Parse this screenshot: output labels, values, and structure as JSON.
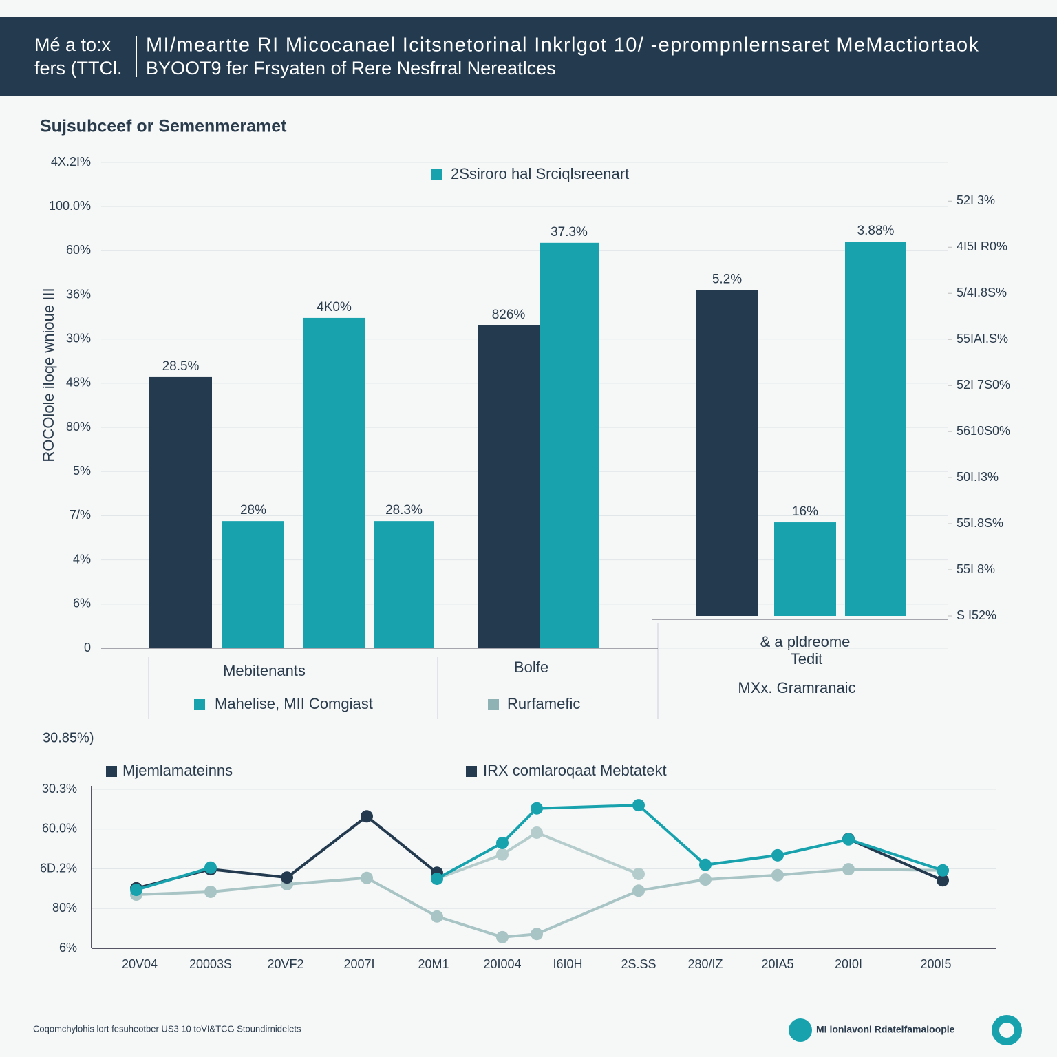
{
  "header": {
    "left": [
      "Mé a to:x",
      "fers (TTCl."
    ],
    "right": [
      "MI/meartte RI Micocanael Icitsnetorinal Inkrlgot 10/ -eprompnlernsaret MeMactiortaok",
      "BYOOT9 fer Frsyaten of Rere Nesfrral Nereatlces"
    ]
  },
  "section_title": "Sujsubceef or Semenmeramet",
  "chart_data": [
    {
      "type": "bar",
      "y_label": "ROCOlole iloqe wnioue III",
      "ylim": [
        0,
        11
      ],
      "yticks": [
        0,
        {
          "value": 1,
          "label": "6%"
        },
        {
          "value": 2,
          "label": "4%"
        },
        {
          "value": 3,
          "label": "7/%"
        },
        {
          "value": 4,
          "label": "5%"
        },
        {
          "value": 5,
          "label": "80%"
        },
        {
          "value": 6,
          "label": "48%"
        },
        {
          "value": 7,
          "label": "30%"
        },
        {
          "value": 8,
          "label": "36%"
        },
        {
          "value": 9,
          "label": "60%"
        },
        {
          "value": 10,
          "label": "100.0%"
        },
        {
          "value": 11,
          "label": "4X.2I%"
        }
      ],
      "y2lim": [
        0,
        9.9
      ],
      "y2ticks": [
        {
          "value": 0,
          "label": "S I52%"
        },
        {
          "value": 1,
          "label": "55I 8%"
        },
        {
          "value": 2,
          "label": "55I.8S%"
        },
        {
          "value": 3,
          "label": "50I.I3%"
        },
        {
          "value": 4,
          "label": "5610S0%"
        },
        {
          "value": 5,
          "label": "52I 7S0%"
        },
        {
          "value": 6,
          "label": "55IAI.S%"
        },
        {
          "value": 7,
          "label": "5/4I.8S%"
        },
        {
          "value": 8,
          "label": "4I5I R0%"
        },
        {
          "value": 9,
          "label": "52I 3%"
        }
      ],
      "grid": true,
      "series": [
        {
          "color": "#233a4f",
          "values": [
            6.14,
            null,
            null,
            null,
            7.31,
            null,
            null,
            null,
            null
          ],
          "value_labels": [
            "28.5%",
            null,
            null,
            null,
            "826%",
            null,
            null,
            null,
            null
          ]
        },
        {
          "name": "2Ssiroro hal Srciqlsreenart",
          "color": "#17a2ae",
          "values": [
            null,
            2.88,
            7.48,
            2.88,
            null,
            9.18,
            null,
            null,
            null
          ],
          "value_labels": [
            null,
            "28%",
            "4K0%",
            "28.3%",
            null,
            "37.3%",
            null,
            null,
            null
          ]
        },
        {
          "color": "#233a4f",
          "axis": "y2",
          "values": [
            null,
            null,
            null,
            null,
            null,
            null,
            7.07,
            null,
            null
          ],
          "value_labels": [
            null,
            null,
            null,
            null,
            null,
            null,
            "5.2%",
            null,
            null
          ]
        },
        {
          "color": "#17a2ae",
          "axis": "y2",
          "values": [
            null,
            null,
            null,
            null,
            null,
            null,
            null,
            2.03,
            8.12
          ],
          "value_labels": [
            null,
            null,
            null,
            null,
            null,
            null,
            null,
            "16%",
            "3.88%"
          ]
        }
      ],
      "group_labels": [
        "Mebitenants",
        "Bolfe",
        "& a pldreome",
        "Tedit",
        "MXx. Gramranaic"
      ],
      "legend_items": [
        {
          "label": "Mahelise, MII Comgiast",
          "color": "#17a2ae"
        },
        {
          "label": "Rurfamefic",
          "color": "#8fb3b5"
        }
      ]
    },
    {
      "type": "line",
      "subtitle": "30.85%)",
      "categories": [
        "20V04",
        "20003S",
        "20VF2",
        "2007I",
        "20M1",
        "20I004",
        "I6I0H",
        "2S.SS",
        "280/IZ",
        "20IA5",
        "20I0I",
        "200I5"
      ],
      "ylim": [
        0,
        4
      ],
      "yticks": [
        {
          "value": 0,
          "label": "6%"
        },
        {
          "value": 1,
          "label": "80%"
        },
        {
          "value": 2,
          "label": "6D.2%"
        },
        {
          "value": 3,
          "label": "60.0%"
        },
        {
          "value": 4,
          "label": "30.3%"
        }
      ],
      "grid": true,
      "legend": [
        {
          "label": "Mjemlamateinns",
          "color": "#233a4f"
        },
        {
          "label": "IRX comlaroqaat Mebtatekt",
          "color": "#233a4f"
        }
      ],
      "series": [
        {
          "color": "#a9c4c4",
          "values": [
            1.35,
            1.42,
            1.61,
            1.77,
            0.8,
            0.28,
            0.36,
            1.45,
            1.73,
            1.84,
            1.99,
            1.96
          ]
        },
        {
          "color": "#b5cccc",
          "values": [
            null,
            null,
            null,
            null,
            1.75,
            2.36,
            2.91,
            1.87,
            null,
            null,
            null,
            null
          ]
        },
        {
          "color": "#233a4f",
          "values": [
            1.51,
            1.99,
            1.78,
            3.32,
            1.9,
            null,
            null,
            null,
            null,
            null,
            2.75,
            1.71
          ]
        },
        {
          "color": "#17a2ae",
          "values": [
            1.47,
            2.03,
            null,
            null,
            1.75,
            2.65,
            3.52,
            3.6,
            2.1,
            2.34,
            2.74,
            1.96
          ]
        }
      ]
    }
  ],
  "footer": {
    "note": "Coqomchylohis lort fesuheotber US3 10 toVI&TCG Stoundirnidelets",
    "logo": "MI lonlavonl Rdatelfamaloople"
  }
}
